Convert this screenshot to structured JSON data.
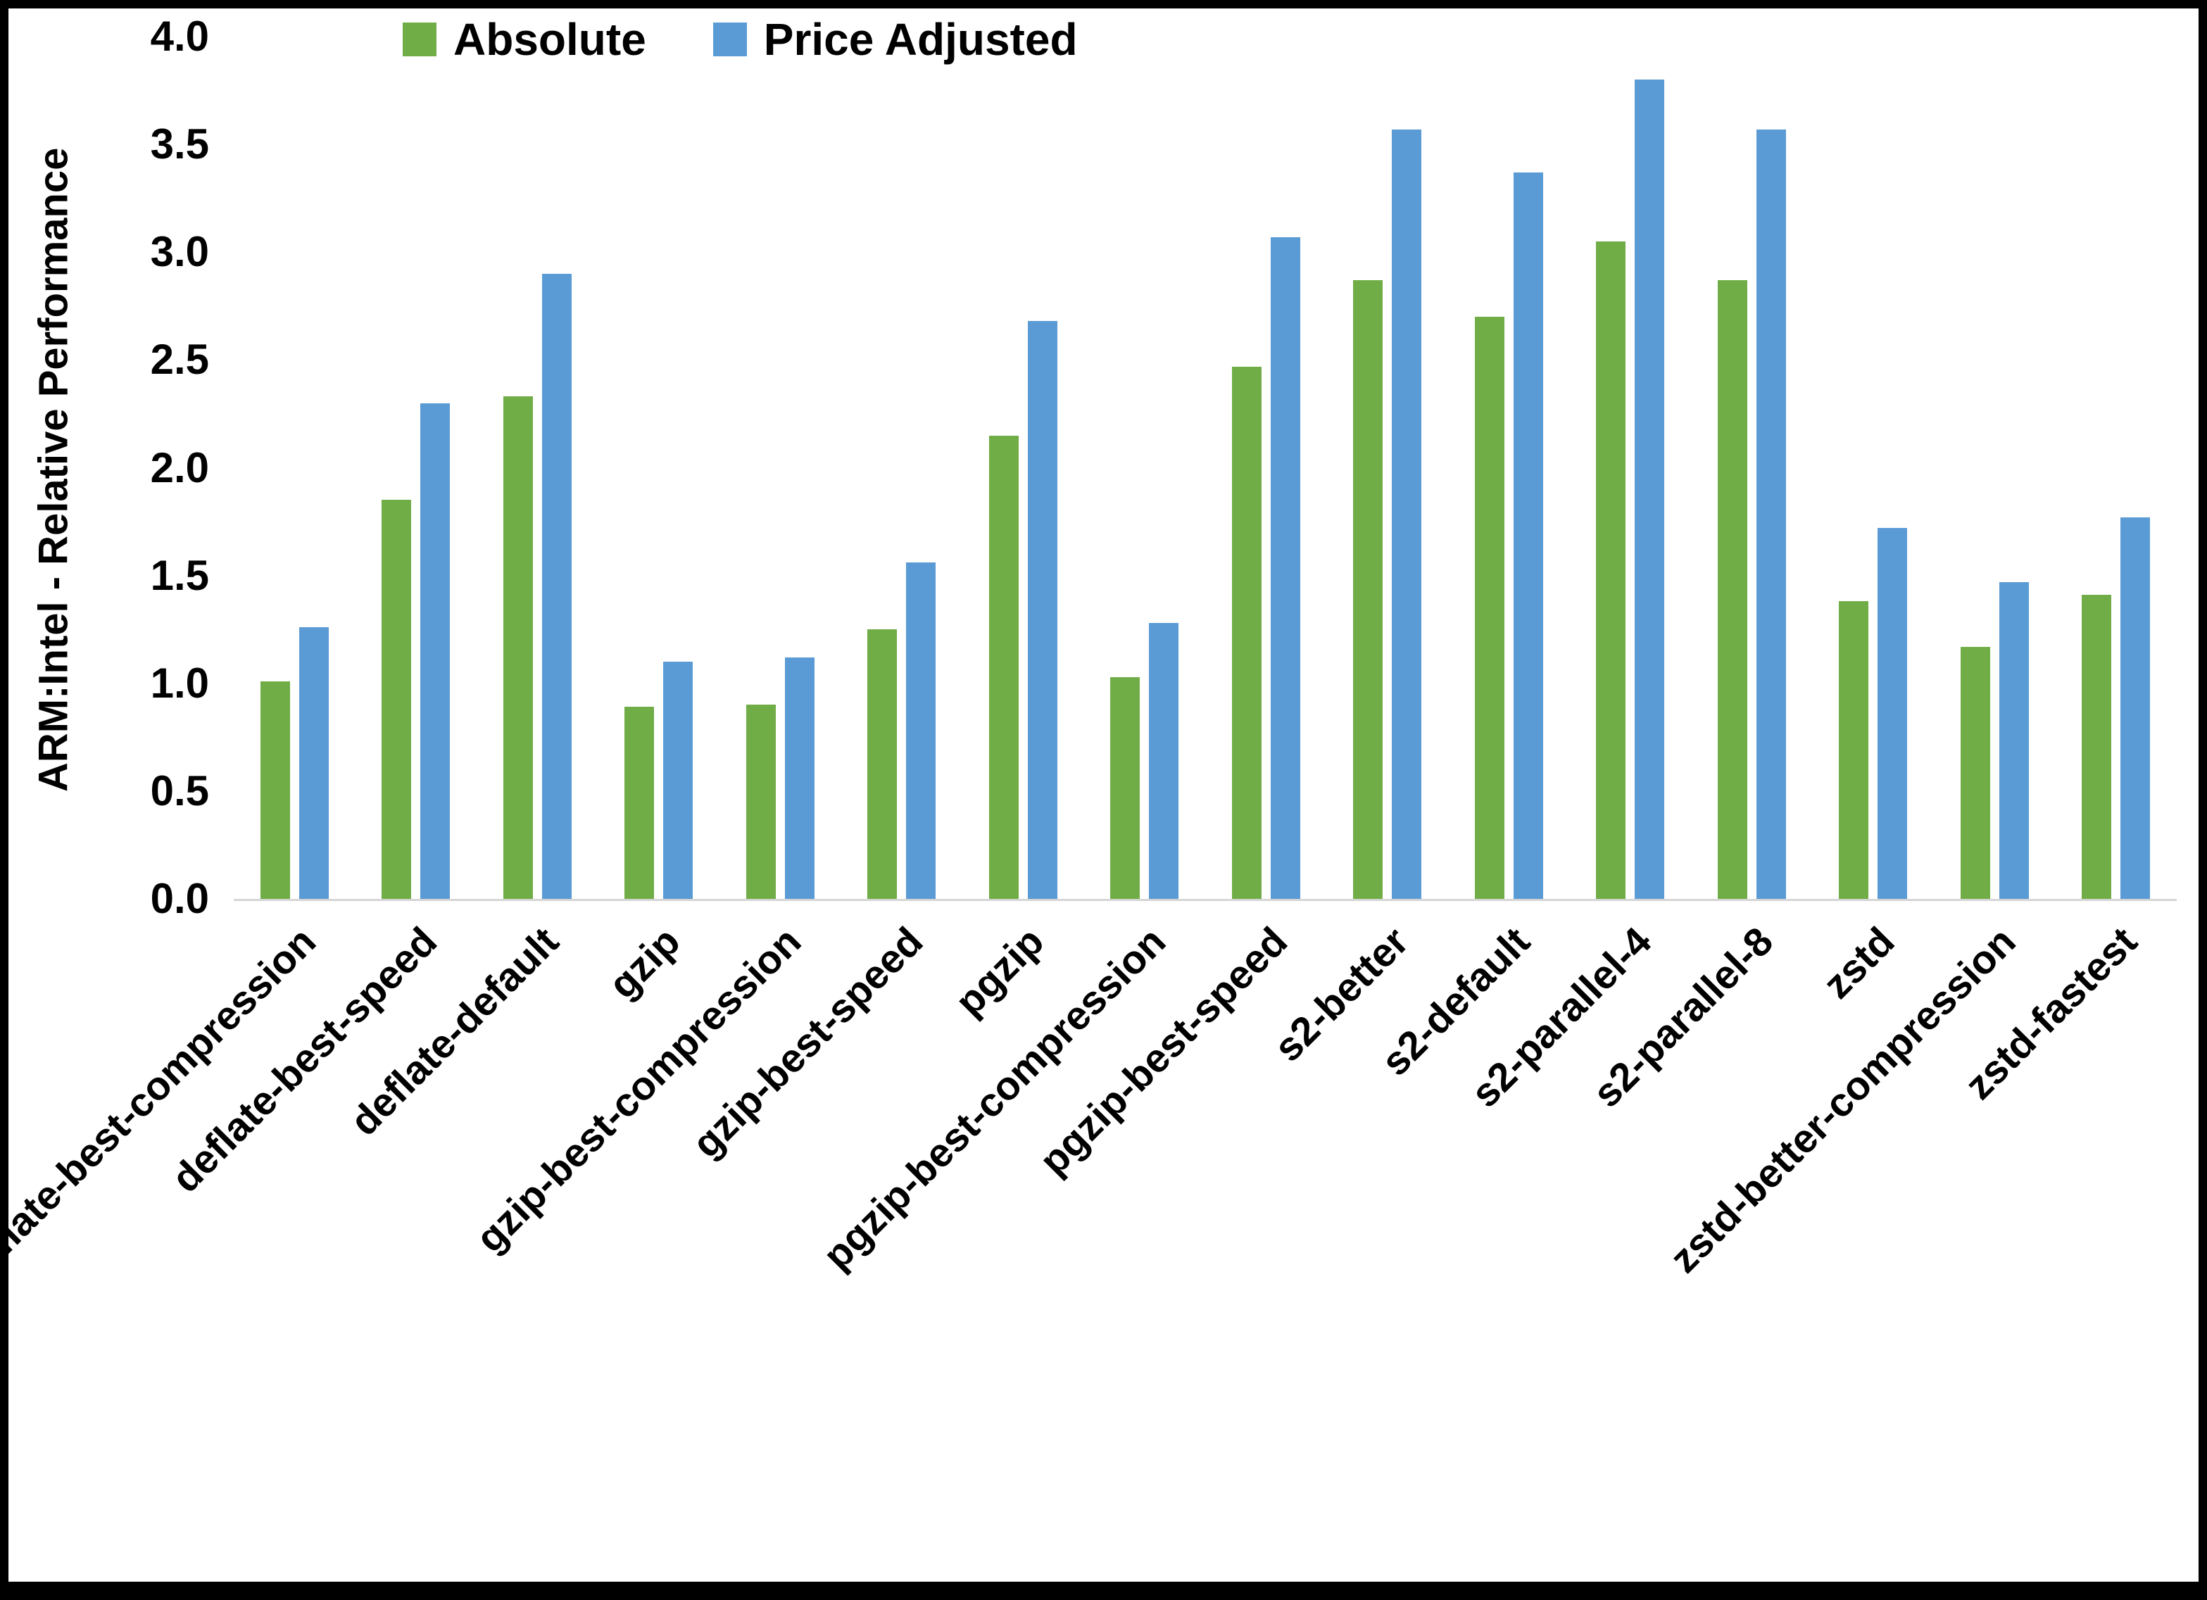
{
  "chart_data": {
    "type": "bar",
    "title": "",
    "xlabel": "",
    "ylabel": "ARM:Intel - Relative Performance",
    "ylim": [
      0,
      4.0
    ],
    "ytick_step": 0.5,
    "grid": false,
    "legend_position": "top-center-inside",
    "categories": [
      "deflate-best-compression",
      "deflate-best-speed",
      "deflate-default",
      "gzip",
      "gzip-best-compression",
      "gzip-best-speed",
      "pgzip",
      "pgzip-best-compression",
      "pgzip-best-speed",
      "s2-better",
      "s2-default",
      "s2-parallel-4",
      "s2-parallel-8",
      "zstd",
      "zstd-better-compression",
      "zstd-fastest"
    ],
    "series": [
      {
        "name": "Absolute",
        "color": "#70AD47",
        "values": [
          1.01,
          1.85,
          2.33,
          0.89,
          0.9,
          1.25,
          2.15,
          1.03,
          2.47,
          2.87,
          2.7,
          3.05,
          2.87,
          1.38,
          1.17,
          1.41
        ]
      },
      {
        "name": "Price Adjusted",
        "color": "#5B9BD5",
        "values": [
          1.26,
          2.3,
          2.9,
          1.1,
          1.12,
          1.56,
          2.68,
          1.28,
          3.07,
          3.57,
          3.37,
          3.8,
          3.57,
          1.72,
          1.47,
          1.77
        ]
      }
    ]
  },
  "colors": {
    "axis_line": "#d6d6d6",
    "text": "#000000",
    "frame_border": "#000000"
  }
}
